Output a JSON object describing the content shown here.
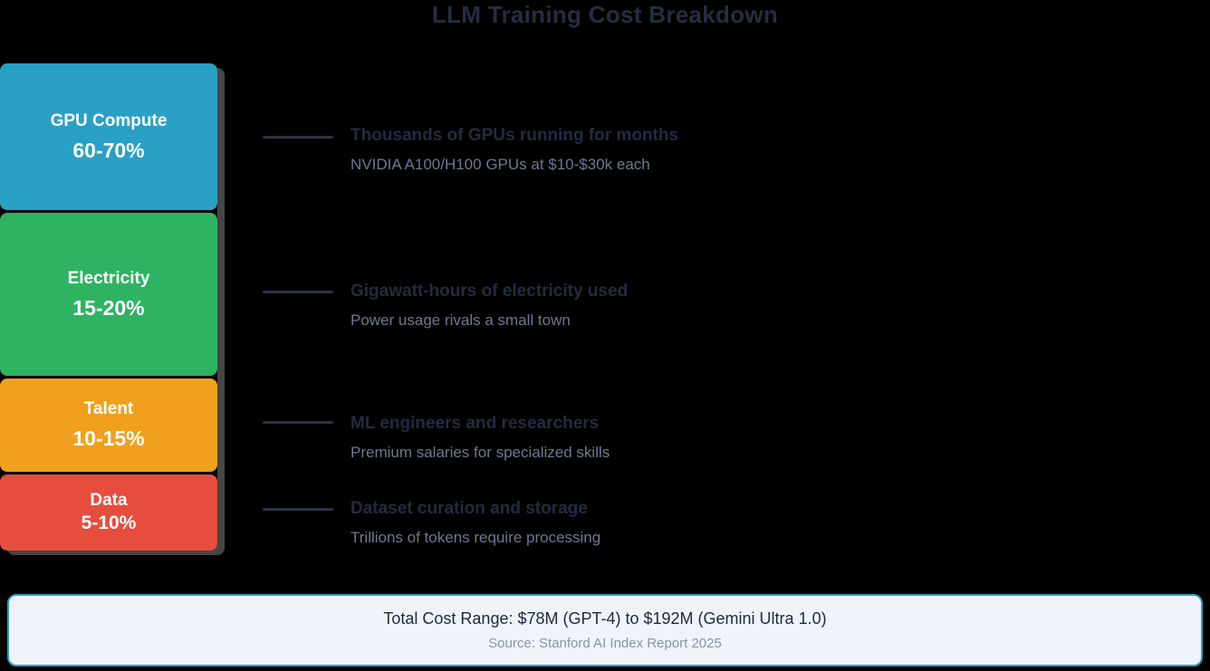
{
  "title": "LLM Training Cost Breakdown",
  "colors": {
    "background": "#000000",
    "gpu_compute": "#2aa0c4",
    "electricity": "#2eb363",
    "talent": "#f0a01c",
    "data": "#e64d3c",
    "connector": "#2b3246",
    "annotation_bold_text": "#242b3f",
    "annotation_detail_text": "#6e7890",
    "footer_border": "#2aa0c4",
    "footer_background": "#eef4fa",
    "bar_shadow": "#808080"
  },
  "chart_data": {
    "type": "bar",
    "stacked": true,
    "orientation": "vertical",
    "title": "LLM Training Cost Breakdown",
    "categories": [
      "GPU Compute",
      "Electricity",
      "Talent",
      "Data"
    ],
    "values_pct_min": [
      60,
      15,
      10,
      5
    ],
    "values_pct_max": [
      70,
      20,
      15,
      10
    ],
    "segments": [
      {
        "label": "GPU Compute",
        "range": "60-70%",
        "color": "#2aa0c4",
        "annotation_bold": "Thousands of GPUs running for months",
        "annotation_detail": "NVIDIA A100/H100 GPUs at $10-$30k each"
      },
      {
        "label": "Electricity",
        "range": "15-20%",
        "color": "#2eb363",
        "annotation_bold": "Gigawatt-hours of electricity used",
        "annotation_detail": "Power usage rivals a small town"
      },
      {
        "label": "Talent",
        "range": "10-15%",
        "color": "#f0a01c",
        "annotation_bold": "ML engineers and researchers",
        "annotation_detail": "Premium salaries for specialized skills"
      },
      {
        "label": "Data",
        "range": "5-10%",
        "color": "#e64d3c",
        "annotation_bold": "Dataset curation and storage",
        "annotation_detail": "Trillions of tokens require processing"
      }
    ],
    "legend_position": "none",
    "grid": false
  },
  "footer": {
    "total": "Total Cost Range: $78M (GPT-4) to $192M (Gemini Ultra 1.0)",
    "source": "Source: Stanford AI Index Report 2025"
  }
}
